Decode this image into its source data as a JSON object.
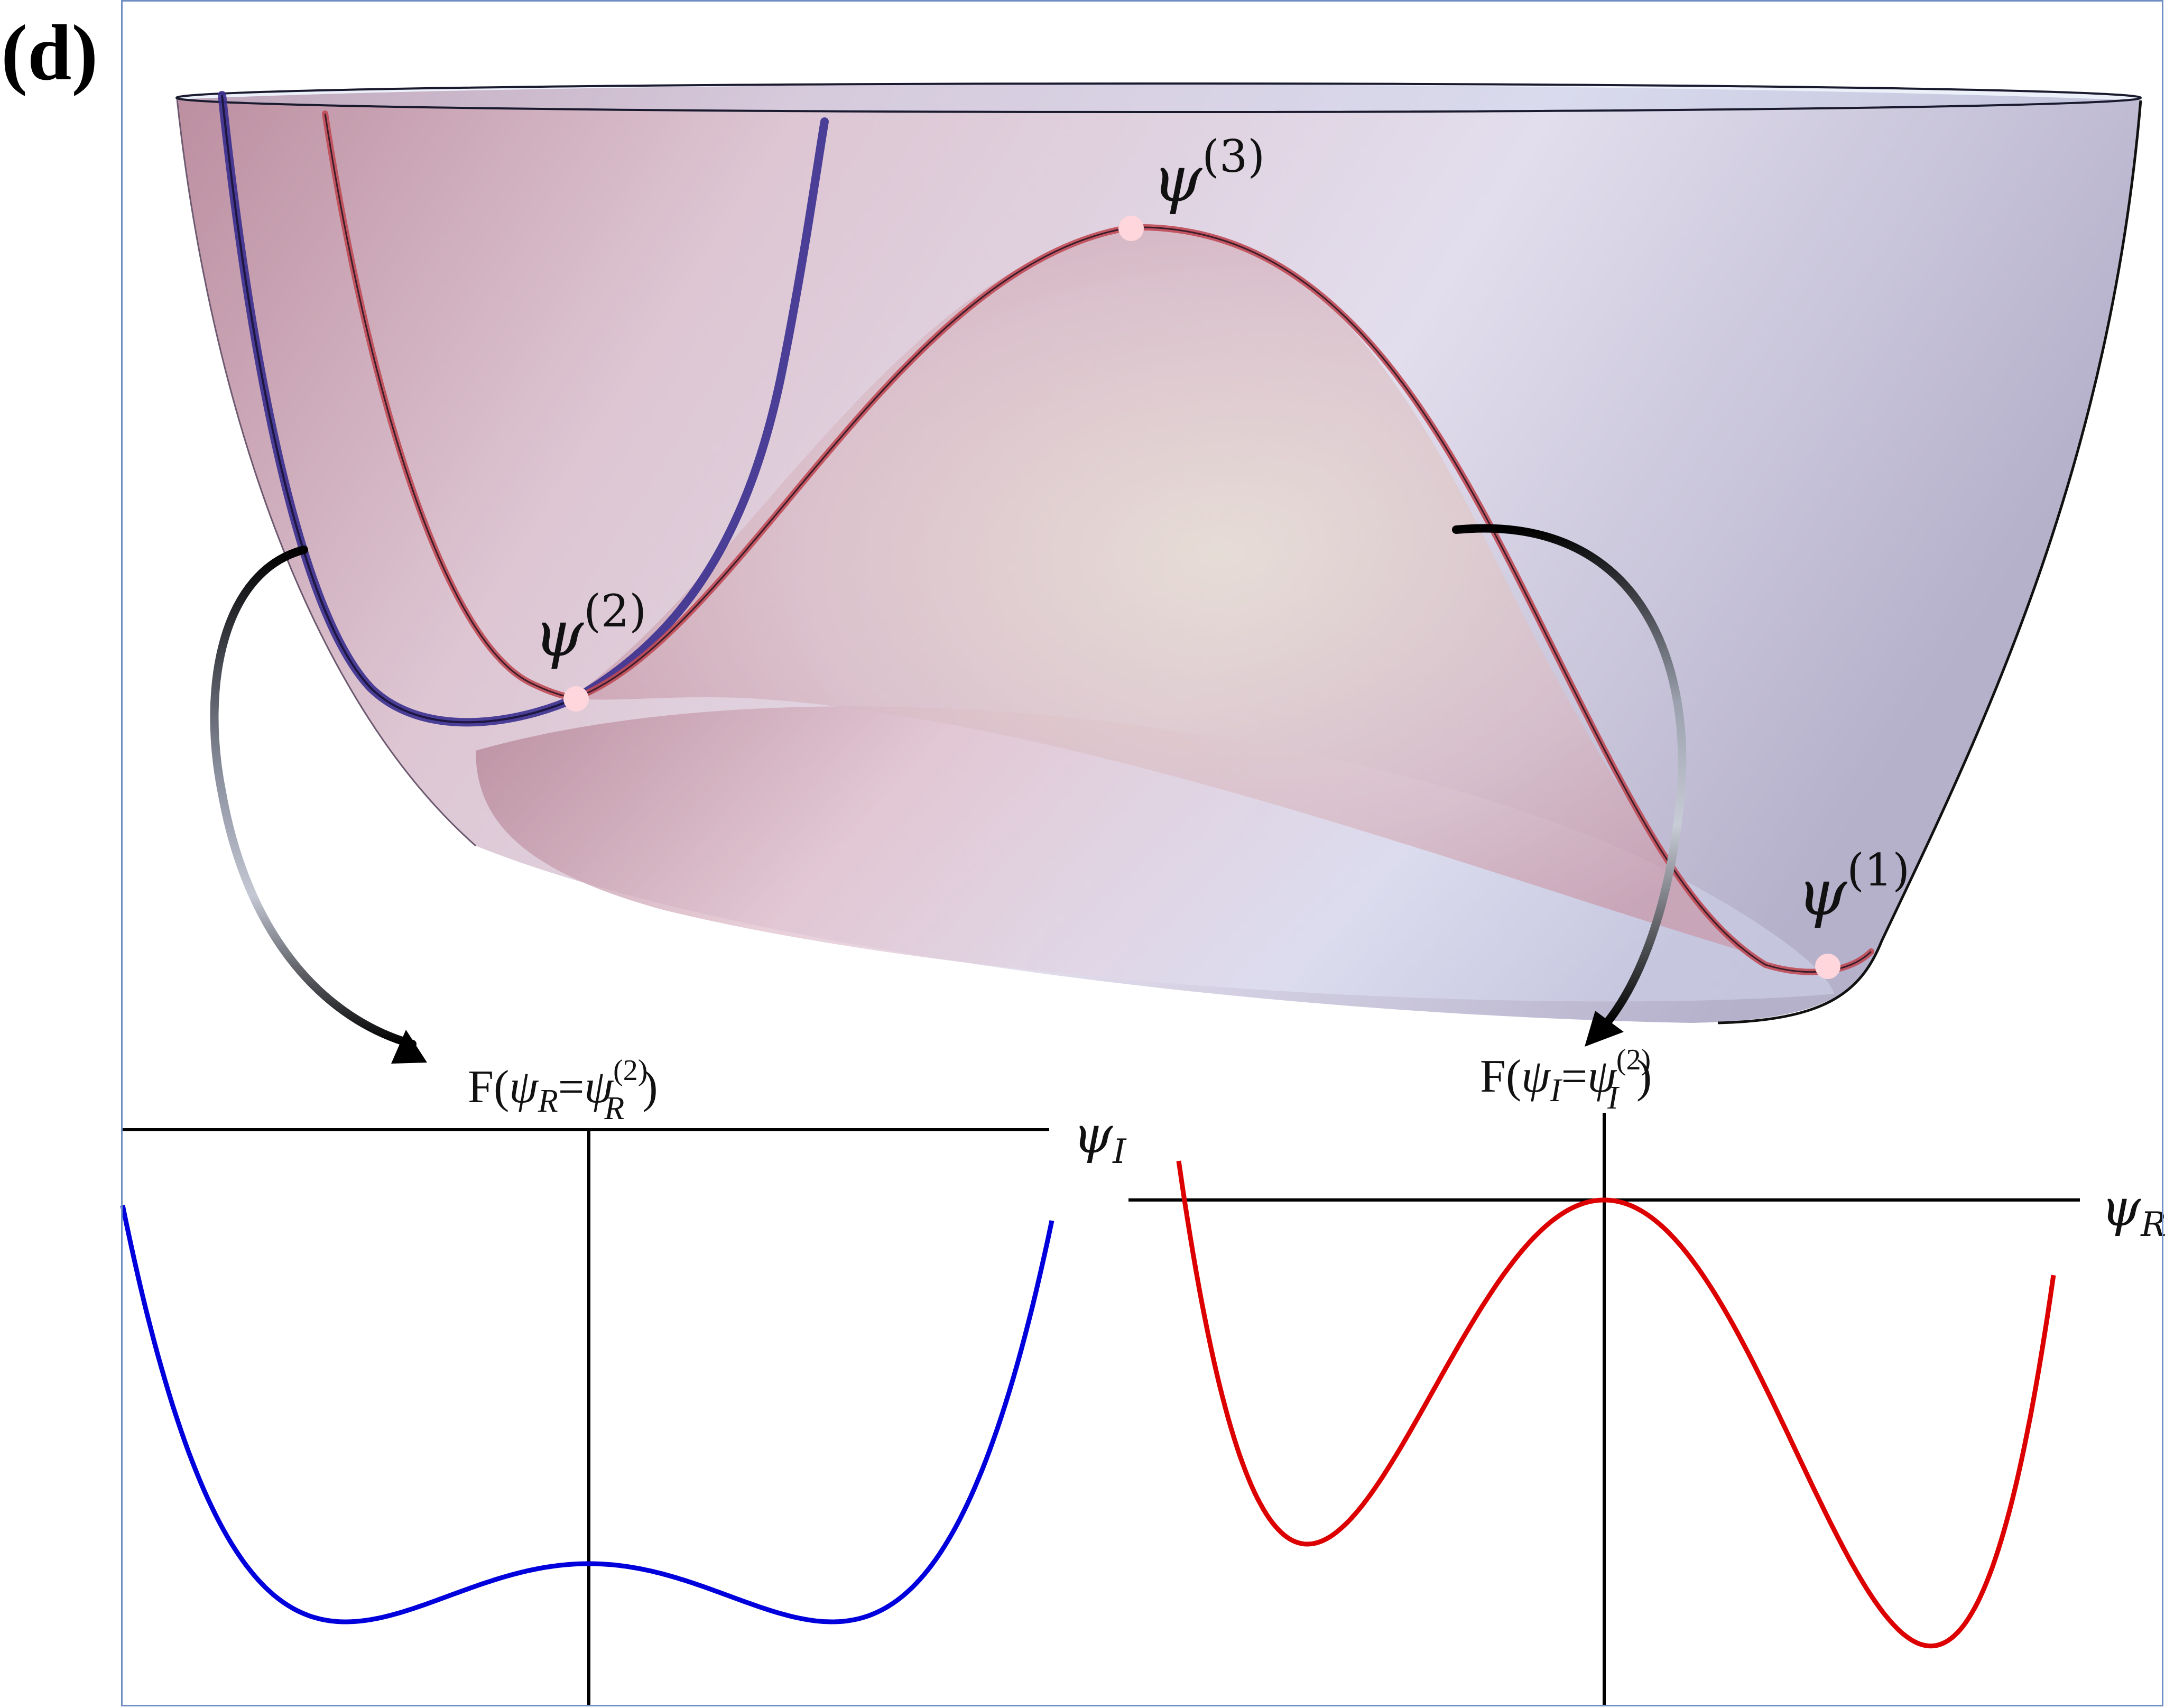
{
  "panel_label": "(d)",
  "points": {
    "p1": {
      "symbol": "ψ",
      "sup": "(1)"
    },
    "p2": {
      "symbol": "ψ",
      "sup": "(2)"
    },
    "p3": {
      "symbol": "ψ",
      "sup": "(3)"
    }
  },
  "left_plot": {
    "title": {
      "pre": "F(",
      "var": "ψ",
      "sub": "R",
      "eq": "=",
      "var2": "ψ",
      "sup2": "(2)",
      "sub2": "R",
      "post": ")"
    },
    "axis": {
      "var": "ψ",
      "sub": "I"
    },
    "curve_color": "#0000dd"
  },
  "right_plot": {
    "title": {
      "pre": "F(",
      "var": "ψ",
      "sub": "I",
      "eq": "=",
      "var2": "ψ",
      "sup2": "(2)",
      "sub2": "I",
      "post": ")"
    },
    "axis": {
      "var": "ψ",
      "sub": "R"
    },
    "curve_color": "#dd0000"
  },
  "colors": {
    "surface_rim": "#1a1a2e",
    "blue_ribbon": "#3a2f8f",
    "red_ribbon": "#c04a55",
    "point_marker": "#ffd6dc",
    "arrow": "#000000",
    "frame": "#6f8fc4"
  }
}
